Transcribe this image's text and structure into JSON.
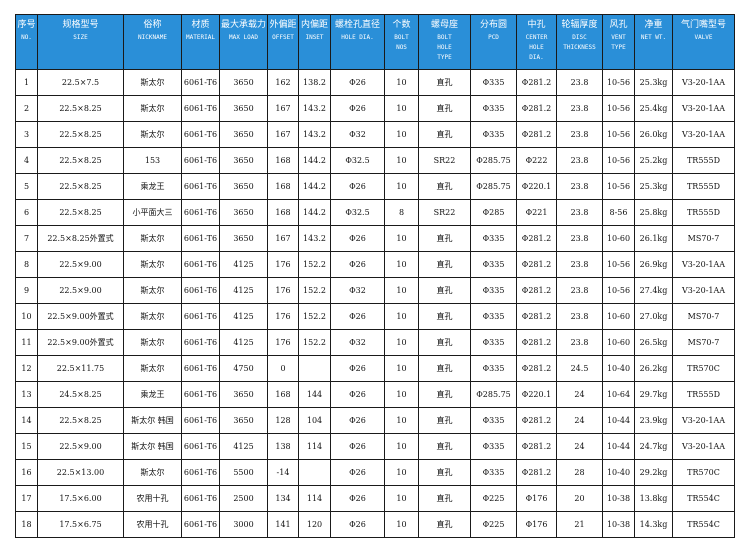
{
  "headers": [
    {
      "zh": "序号",
      "en": "NO."
    },
    {
      "zh": "规格型号",
      "en": "SIZE"
    },
    {
      "zh": "俗称",
      "en": "NICKNAME"
    },
    {
      "zh": "材质",
      "en": "MATERIAL"
    },
    {
      "zh": "最大承载力",
      "en": "MAX LOAD"
    },
    {
      "zh": "外偏距",
      "en": "OFFSET"
    },
    {
      "zh": "内偏距",
      "en": "INSET"
    },
    {
      "zh": "螺栓孔直径",
      "en": "HOLE DIA."
    },
    {
      "zh": "个数",
      "en": "BOLT\nNOS"
    },
    {
      "zh": "螺母座",
      "en": "BOLT\nHOLE\nTYPE"
    },
    {
      "zh": "分布圆",
      "en": "PCD"
    },
    {
      "zh": "中孔",
      "en": "CENTER\nHOLE\nDIA."
    },
    {
      "zh": "轮辐厚度",
      "en": "DISC\nTHICKNESS"
    },
    {
      "zh": "风孔",
      "en": "VENT\nTYPE"
    },
    {
      "zh": "净重",
      "en": "NET WT."
    },
    {
      "zh": "气门嘴型号",
      "en": "VALVE"
    }
  ],
  "rows": [
    [
      "1",
      "22.5×7.5",
      "斯太尔",
      "6061-T6",
      "3650",
      "162",
      "138.2",
      "Φ26",
      "10",
      "直孔",
      "Φ335",
      "Φ281.2",
      "23.8",
      "10-56",
      "25.3kg",
      "V3-20-1AA"
    ],
    [
      "2",
      "22.5×8.25",
      "斯太尔",
      "6061-T6",
      "3650",
      "167",
      "143.2",
      "Φ26",
      "10",
      "直孔",
      "Φ335",
      "Φ281.2",
      "23.8",
      "10-56",
      "25.4kg",
      "V3-20-1AA"
    ],
    [
      "3",
      "22.5×8.25",
      "斯太尔",
      "6061-T6",
      "3650",
      "167",
      "143.2",
      "Φ32",
      "10",
      "直孔",
      "Φ335",
      "Φ281.2",
      "23.8",
      "10-56",
      "26.0kg",
      "V3-20-1AA"
    ],
    [
      "4",
      "22.5×8.25",
      "153",
      "6061-T6",
      "3650",
      "168",
      "144.2",
      "Φ32.5",
      "10",
      "SR22",
      "Φ285.75",
      "Φ222",
      "23.8",
      "10-56",
      "25.2kg",
      "TR555D"
    ],
    [
      "5",
      "22.5×8.25",
      "乘龙王",
      "6061-T6",
      "3650",
      "168",
      "144.2",
      "Φ26",
      "10",
      "直孔",
      "Φ285.75",
      "Φ220.1",
      "23.8",
      "10-56",
      "25.3kg",
      "TR555D"
    ],
    [
      "6",
      "22.5×8.25",
      "小平面大三",
      "6061-T6",
      "3650",
      "168",
      "144.2",
      "Φ32.5",
      "8",
      "SR22",
      "Φ285",
      "Φ221",
      "23.8",
      "8-56",
      "25.8kg",
      "TR555D"
    ],
    [
      "7",
      "22.5×8.25外置式",
      "斯太尔",
      "6061-T6",
      "3650",
      "167",
      "143.2",
      "Φ26",
      "10",
      "直孔",
      "Φ335",
      "Φ281.2",
      "23.8",
      "10-60",
      "26.1kg",
      "MS70-7"
    ],
    [
      "8",
      "22.5×9.00",
      "斯太尔",
      "6061-T6",
      "4125",
      "176",
      "152.2",
      "Φ26",
      "10",
      "直孔",
      "Φ335",
      "Φ281.2",
      "23.8",
      "10-56",
      "26.9kg",
      "V3-20-1AA"
    ],
    [
      "9",
      "22.5×9.00",
      "斯太尔",
      "6061-T6",
      "4125",
      "176",
      "152.2",
      "Φ32",
      "10",
      "直孔",
      "Φ335",
      "Φ281.2",
      "23.8",
      "10-56",
      "27.4kg",
      "V3-20-1AA"
    ],
    [
      "10",
      "22.5×9.00外置式",
      "斯太尔",
      "6061-T6",
      "4125",
      "176",
      "152.2",
      "Φ26",
      "10",
      "直孔",
      "Φ335",
      "Φ281.2",
      "23.8",
      "10-60",
      "27.0kg",
      "MS70-7"
    ],
    [
      "11",
      "22.5×9.00外置式",
      "斯太尔",
      "6061-T6",
      "4125",
      "176",
      "152.2",
      "Φ32",
      "10",
      "直孔",
      "Φ335",
      "Φ281.2",
      "23.8",
      "10-60",
      "26.5kg",
      "MS70-7"
    ],
    [
      "12",
      "22.5×11.75",
      "斯太尔",
      "6061-T6",
      "4750",
      "0",
      "",
      "Φ26",
      "10",
      "直孔",
      "Φ335",
      "Φ281.2",
      "24.5",
      "10-40",
      "26.2kg",
      "TR570C"
    ],
    [
      "13",
      "24.5×8.25",
      "乘龙王",
      "6061-T6",
      "3650",
      "168",
      "144",
      "Φ26",
      "10",
      "直孔",
      "Φ285.75",
      "Φ220.1",
      "24",
      "10-64",
      "29.7kg",
      "TR555D"
    ],
    [
      "14",
      "22.5×8.25",
      "斯太尔 韩国",
      "6061-T6",
      "3650",
      "128",
      "104",
      "Φ26",
      "10",
      "直孔",
      "Φ335",
      "Φ281.2",
      "24",
      "10-44",
      "23.9kg",
      "V3-20-1AA"
    ],
    [
      "15",
      "22.5×9.00",
      "斯太尔 韩国",
      "6061-T6",
      "4125",
      "138",
      "114",
      "Φ26",
      "10",
      "直孔",
      "Φ335",
      "Φ281.2",
      "24",
      "10-44",
      "24.7kg",
      "V3-20-1AA"
    ],
    [
      "16",
      "22.5×13.00",
      "斯太尔",
      "6061-T6",
      "5500",
      "-14",
      "",
      "Φ26",
      "10",
      "直孔",
      "Φ335",
      "Φ281.2",
      "28",
      "10-40",
      "29.2kg",
      "TR570C"
    ],
    [
      "17",
      "17.5×6.00",
      "农用十孔",
      "6061-T6",
      "2500",
      "134",
      "114",
      "Φ26",
      "10",
      "直孔",
      "Φ225",
      "Φ176",
      "20",
      "10-38",
      "13.8kg",
      "TR554C"
    ],
    [
      "18",
      "17.5×6.75",
      "农用十孔",
      "6061-T6",
      "3000",
      "141",
      "120",
      "Φ26",
      "10",
      "直孔",
      "Φ225",
      "Φ176",
      "21",
      "10-38",
      "14.3kg",
      "TR554C"
    ]
  ]
}
